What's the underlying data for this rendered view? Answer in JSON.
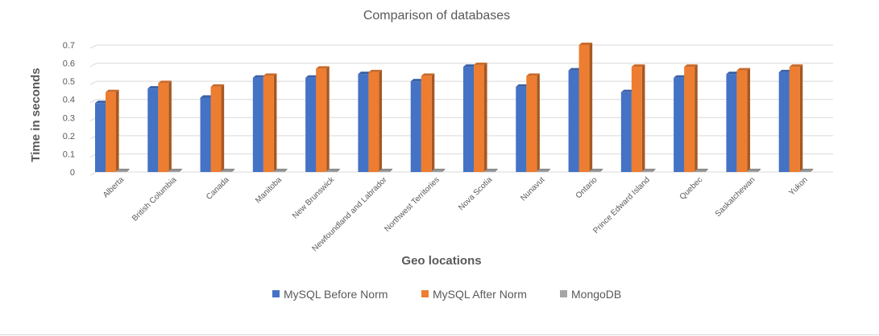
{
  "chart_data": {
    "type": "bar",
    "title": "Comparison of databases",
    "xlabel": "Geo locations",
    "ylabel": "Time in seconds",
    "ylim": [
      0,
      0.7
    ],
    "yticks": [
      "0",
      "0.1",
      "0.2",
      "0.3",
      "0.4",
      "0.5",
      "0.6",
      "0.7"
    ],
    "grid": true,
    "legend_position": "bottom",
    "categories": [
      "Alberta",
      "British Columbia",
      "Canada",
      "Manitoba",
      "New Brunswick",
      "Newfoundland and Labrador",
      "Northwest Territories",
      "Nova Scotia",
      "Nunavut",
      "Ontario",
      "Prince Edward Island",
      "Quebec",
      "Saskatchewan",
      "Yukon"
    ],
    "series": [
      {
        "name": "MySQL Before Norm",
        "color": "#4472C4",
        "values": [
          0.38,
          0.46,
          0.41,
          0.52,
          0.52,
          0.54,
          0.5,
          0.58,
          0.47,
          0.56,
          0.44,
          0.52,
          0.54,
          0.55
        ]
      },
      {
        "name": "MySQL After Norm",
        "color": "#ED7D31",
        "values": [
          0.44,
          0.49,
          0.47,
          0.53,
          0.57,
          0.55,
          0.53,
          0.59,
          0.53,
          0.7,
          0.58,
          0.58,
          0.56,
          0.58
        ]
      },
      {
        "name": "MongoDB",
        "color": "#A5A5A5",
        "values": [
          0.005,
          0.005,
          0.005,
          0.005,
          0.005,
          0.005,
          0.005,
          0.005,
          0.005,
          0.005,
          0.005,
          0.005,
          0.005,
          0.005
        ]
      }
    ]
  }
}
